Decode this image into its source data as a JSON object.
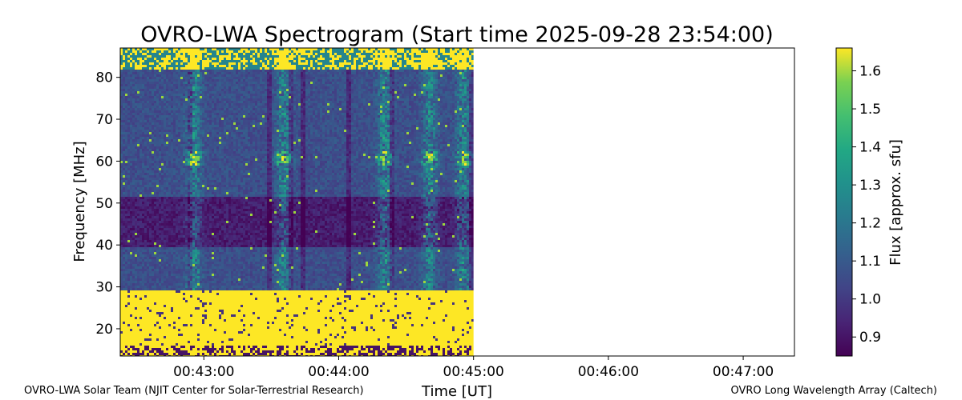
{
  "chart_data": {
    "type": "heatmap",
    "title": "OVRO-LWA Spectrogram (Start time 2025-09-28 23:54:00)",
    "xlabel": "Time [UT]",
    "ylabel": "Frequency [MHz]",
    "x_ticks": [
      "00:43:00",
      "00:44:00",
      "00:45:00",
      "00:46:00",
      "00:47:00"
    ],
    "y_ticks": [
      20,
      30,
      40,
      50,
      60,
      70,
      80
    ],
    "ylim": [
      13.5,
      87
    ],
    "x_range_minutes_after_00_00_UT": [
      42.38,
      47.38
    ],
    "data_end_x": "00:45:00",
    "colorbar": {
      "label": "Flux [approx. sfu]",
      "range": [
        0.85,
        1.66
      ],
      "ticks": [
        0.9,
        1.0,
        1.1,
        1.2,
        1.3,
        1.4,
        1.5,
        1.6
      ],
      "colormap": "viridis"
    },
    "features": {
      "saturated_band_mhz": [
        16,
        29.5
      ],
      "rfi_band_mhz": [
        82,
        87
      ],
      "bright_times": [
        "00:42:55",
        "00:43:35",
        "00:44:20",
        "00:44:40",
        "00:44:55"
      ]
    }
  },
  "footer": {
    "left": "OVRO-LWA Solar Team (NJIT Center for Solar-Terrestrial Research)",
    "right": "OVRO Long Wavelength Array (Caltech)"
  },
  "colors": {
    "viridis_low": "#440154",
    "viridis_high": "#fde725"
  }
}
